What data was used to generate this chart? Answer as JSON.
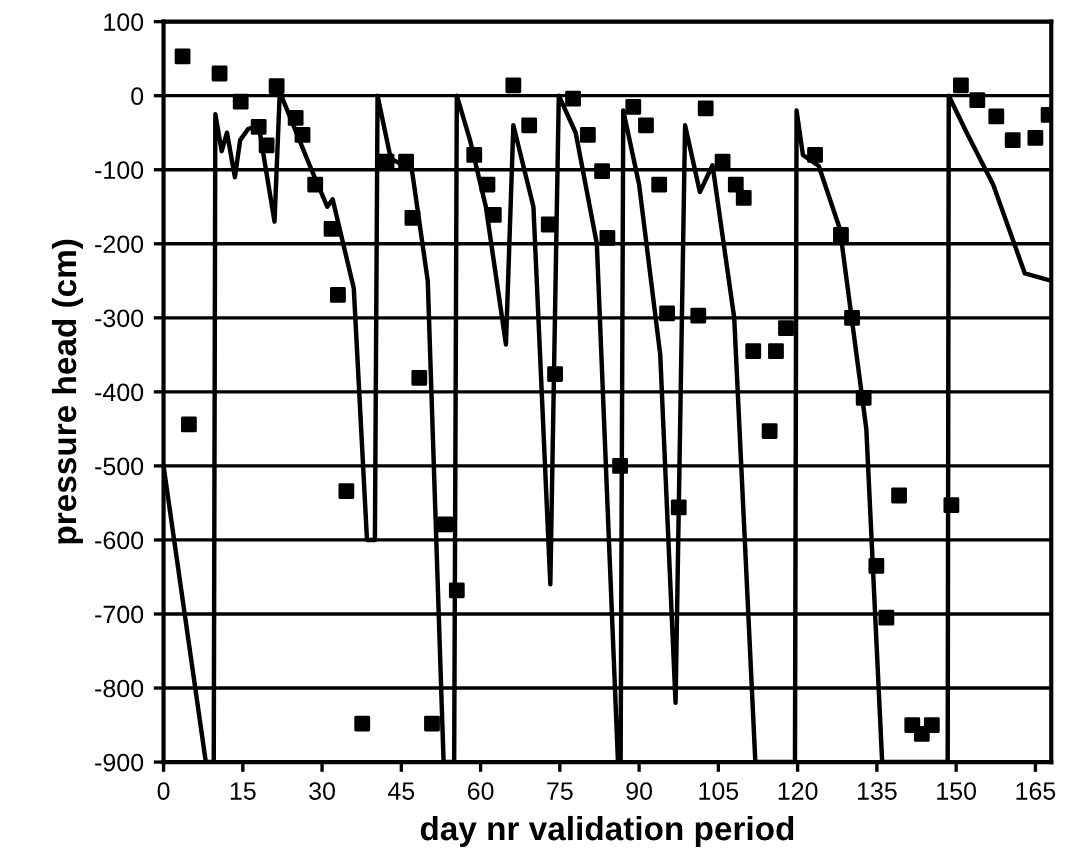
{
  "chart_data": {
    "type": "line",
    "xlabel": "day nr validation period",
    "ylabel": "pressure head (cm)",
    "xlim": [
      0,
      168
    ],
    "ylim": [
      -900,
      100
    ],
    "xticks": [
      0,
      15,
      30,
      45,
      60,
      75,
      90,
      105,
      120,
      135,
      150,
      165
    ],
    "yticks": [
      100,
      0,
      -100,
      -200,
      -300,
      -400,
      -500,
      -600,
      -700,
      -800,
      -900
    ],
    "grid": "y",
    "legend": false,
    "series": [
      {
        "color": "#000000",
        "marker": "none",
        "line_style": "solid",
        "x": [
          0,
          8,
          9.5,
          9.8,
          11,
          12,
          13.5,
          14.5,
          16,
          18,
          21,
          22,
          24,
          28,
          31,
          32,
          33,
          36,
          38.5,
          40,
          40.5,
          43,
          47,
          50,
          53,
          55,
          55.5,
          58,
          61,
          64.8,
          66.2,
          70,
          73.2,
          74.8,
          78,
          82,
          86,
          86.5,
          87,
          90,
          94,
          96.9,
          98.7,
          101.5,
          103.9,
          108,
          112,
          119.5,
          119.8,
          121,
          124,
          128,
          133,
          136,
          148.4,
          148.6,
          152,
          157,
          161,
          163,
          168
        ],
        "values": [
          -500,
          -900,
          -900,
          -25,
          -75,
          -50,
          -110,
          -60,
          -45,
          -40,
          -170,
          5,
          -30,
          -100,
          -150,
          -140,
          -170,
          -260,
          -600,
          -600,
          0,
          -85,
          -100,
          -250,
          -900,
          -900,
          0,
          -60,
          -150,
          -336,
          -40,
          -150,
          -660,
          0,
          -50,
          -200,
          -900,
          -900,
          -20,
          -120,
          -350,
          -820,
          -40,
          -130,
          -94,
          -300,
          -900,
          -900,
          -20,
          -80,
          -95,
          -180,
          -450,
          -900,
          -900,
          0,
          -50,
          -120,
          -200,
          -240,
          -250
        ]
      },
      {
        "type": "scatter",
        "color": "#000000",
        "marker": "square",
        "x": [
          3.6,
          4.8,
          10.6,
          14.6,
          18,
          19.5,
          21.4,
          25,
          26.3,
          28.7,
          31.8,
          33,
          34.6,
          37.6,
          42.2,
          45.9,
          47.1,
          48.4,
          50.8,
          53.3,
          55.5,
          58.8,
          61.3,
          62.5,
          66.2,
          69.2,
          72.9,
          74.1,
          77.5,
          80.3,
          83,
          84,
          86.4,
          88.9,
          91.3,
          93.8,
          95.3,
          97.5,
          101.2,
          102.6,
          105.8,
          108.3,
          109.8,
          111.6,
          114.7,
          115.9,
          117.8,
          123.3,
          128.2,
          130.3,
          132.5,
          134.9,
          136.8,
          139.2,
          141.7,
          143.5,
          145.4,
          149.1,
          150.9,
          154,
          157.6,
          160.7,
          165,
          167.5
        ],
        "values": [
          53,
          -444,
          30,
          -8,
          -42,
          -67,
          13,
          -30,
          -53,
          -120,
          -180,
          -269,
          -534,
          -848,
          -89,
          -89,
          -165,
          -381,
          -848,
          -579,
          -668,
          -80,
          -120,
          -161,
          14,
          -40,
          -174,
          -376,
          -4,
          -53,
          -102,
          -192,
          -500,
          -15,
          -40,
          -120,
          -294,
          -556,
          -297,
          -17,
          -89,
          -120,
          -138,
          -345,
          -453,
          -345,
          -314,
          -80,
          -188,
          -300,
          -408,
          -635,
          -705,
          -540,
          -850,
          -862,
          -850,
          -553,
          14,
          -6,
          -28,
          -60,
          -57,
          -26
        ]
      }
    ]
  }
}
